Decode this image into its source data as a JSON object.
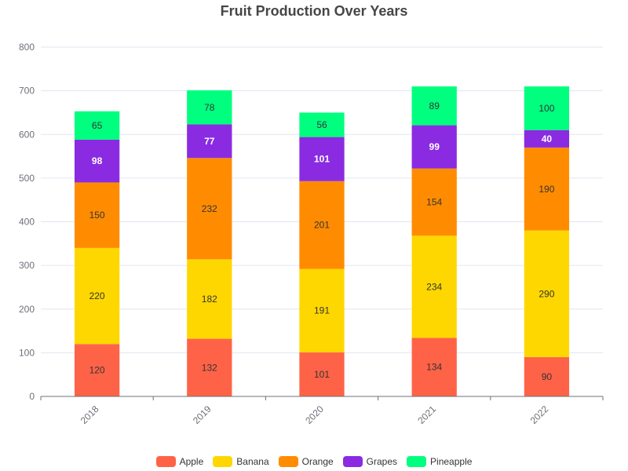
{
  "chart_data": {
    "type": "bar",
    "stacked": true,
    "title": "Fruit Production Over Years",
    "xlabel": "",
    "ylabel": "",
    "categories": [
      "2018",
      "2019",
      "2020",
      "2021",
      "2022"
    ],
    "ylim": [
      0,
      800
    ],
    "yticks": [
      "0",
      "100",
      "200",
      "300",
      "400",
      "500",
      "600",
      "700",
      "800"
    ],
    "grid": true,
    "legend_position": "bottom",
    "series": [
      {
        "name": "Apple",
        "color": "#ff6347",
        "label_color": "#333333",
        "values": [
          120,
          132,
          101,
          134,
          90
        ]
      },
      {
        "name": "Banana",
        "color": "#ffd700",
        "label_color": "#333333",
        "values": [
          220,
          182,
          191,
          234,
          290
        ]
      },
      {
        "name": "Orange",
        "color": "#ff8c00",
        "label_color": "#333333",
        "values": [
          150,
          232,
          201,
          154,
          190
        ]
      },
      {
        "name": "Grapes",
        "color": "#8a2be2",
        "label_color": "#ffffff",
        "values": [
          98,
          77,
          101,
          99,
          40
        ]
      },
      {
        "name": "Pineapple",
        "color": "#00ff7f",
        "label_color": "#333333",
        "values": [
          65,
          78,
          56,
          89,
          100
        ]
      }
    ]
  }
}
